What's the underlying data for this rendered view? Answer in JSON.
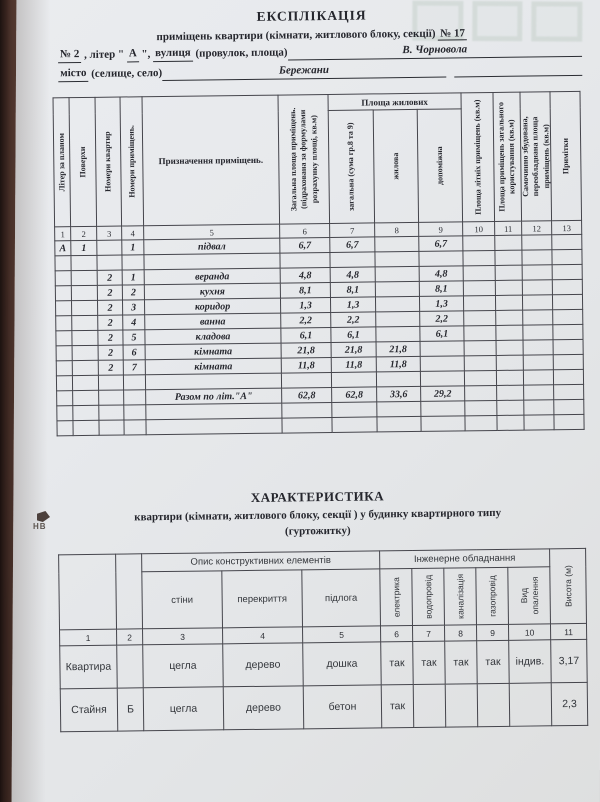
{
  "photo": {
    "edge_mark": "НВ"
  },
  "explication": {
    "title": "ЕКСПЛІКАЦІЯ",
    "subtitle": "приміщень квартири (кімнати, житлового блоку, секції)",
    "subtitle_number": "№ 17",
    "address_line": {
      "number": "№ 2",
      "mid1": " , літер \" ",
      "liter": "А",
      "mid2": " \", ",
      "street_word": "вулиця",
      "street_rest": " (провулок, площа)",
      "street_value": "В. Чорновола"
    },
    "city_line": {
      "label_word": "місто",
      "label_rest": " (селище, село)",
      "value": "Бережани"
    },
    "table": {
      "group_living": "Площа жилових",
      "headers": {
        "c1": "Літер за планом",
        "c2": "Поверхи",
        "c3": "Номери квартир",
        "c4": "Номери приміщень.",
        "c5": "Призначення приміщень.",
        "c6": "Загальна площа приміщень. (підрахована за формулами розрахунку площі, кв.м)",
        "c7": "загальна (сума гр.8 та 9)",
        "c8": "жилова",
        "c9": "допоміжна",
        "c10": "Площа літніх приміщень (кв.м)",
        "c11": "Площа приміщень загального користування (кв.м)",
        "c12": "Самочинно збудована, переобладнана площа приміщень (кв.м)",
        "c13": "Примітки"
      },
      "nums": [
        "1",
        "2",
        "3",
        "4",
        "5",
        "6",
        "7",
        "8",
        "9",
        "10",
        "11",
        "12",
        "13"
      ],
      "rows": [
        [
          "А",
          "1",
          "",
          "1",
          "підвал",
          "6,7",
          "6,7",
          "",
          "6,7",
          "",
          "",
          "",
          ""
        ],
        [
          "",
          "",
          "",
          "",
          "",
          "",
          "",
          "",
          "",
          "",
          "",
          "",
          ""
        ],
        [
          "",
          "",
          "2",
          "1",
          "веранда",
          "4,8",
          "4,8",
          "",
          "4,8",
          "",
          "",
          "",
          ""
        ],
        [
          "",
          "",
          "2",
          "2",
          "кухня",
          "8,1",
          "8,1",
          "",
          "8,1",
          "",
          "",
          "",
          ""
        ],
        [
          "",
          "",
          "2",
          "3",
          "коридор",
          "1,3",
          "1,3",
          "",
          "1,3",
          "",
          "",
          "",
          ""
        ],
        [
          "",
          "",
          "2",
          "4",
          "ванна",
          "2,2",
          "2,2",
          "",
          "2,2",
          "",
          "",
          "",
          ""
        ],
        [
          "",
          "",
          "2",
          "5",
          "кладова",
          "6,1",
          "6,1",
          "",
          "6,1",
          "",
          "",
          "",
          ""
        ],
        [
          "",
          "",
          "2",
          "6",
          "кімната",
          "21,8",
          "21,8",
          "21,8",
          "",
          "",
          "",
          "",
          ""
        ],
        [
          "",
          "",
          "2",
          "7",
          "кімната",
          "11,8",
          "11,8",
          "11,8",
          "",
          "",
          "",
          "",
          ""
        ],
        [
          "",
          "",
          "",
          "",
          "",
          "",
          "",
          "",
          "",
          "",
          "",
          "",
          ""
        ],
        [
          "",
          "",
          "",
          "",
          "Разом по літ.\"А\"",
          "62,8",
          "62,8",
          "33,6",
          "29,2",
          "",
          "",
          "",
          ""
        ],
        [
          "",
          "",
          "",
          "",
          "",
          "",
          "",
          "",
          "",
          "",
          "",
          "",
          ""
        ],
        [
          "",
          "",
          "",
          "",
          "",
          "",
          "",
          "",
          "",
          "",
          "",
          "",
          ""
        ]
      ]
    }
  },
  "characteristics": {
    "title": "ХАРАКТЕРИСТИКА",
    "subtitle1": "квартири (кімнати, житлового блоку, секції ) у будинку квартирного типу",
    "subtitle2": "(гуртожитку)",
    "table": {
      "group_construction": "Опис конструктивних елементів",
      "group_engineering": "Інженерне обладнання",
      "headers": {
        "walls": "стіни",
        "ceilings": "перекриття",
        "floor": "підлога",
        "electricity": "електрика",
        "water": "водопровід",
        "sewerage": "каналізація",
        "gas": "газопровід",
        "heating": "Вид опалення",
        "height": "Висота (м)"
      },
      "nums": [
        "1",
        "2",
        "3",
        "4",
        "5",
        "6",
        "7",
        "8",
        "9",
        "10",
        "11"
      ],
      "rows": [
        [
          "Квартира",
          "",
          "цегла",
          "дерево",
          "дошка",
          "так",
          "так",
          "так",
          "так",
          "індив.",
          "3,17"
        ],
        [
          "Стайня",
          "Б",
          "цегла",
          "дерево",
          "бетон",
          "так",
          "",
          "",
          "",
          "",
          "2,3"
        ]
      ]
    }
  }
}
